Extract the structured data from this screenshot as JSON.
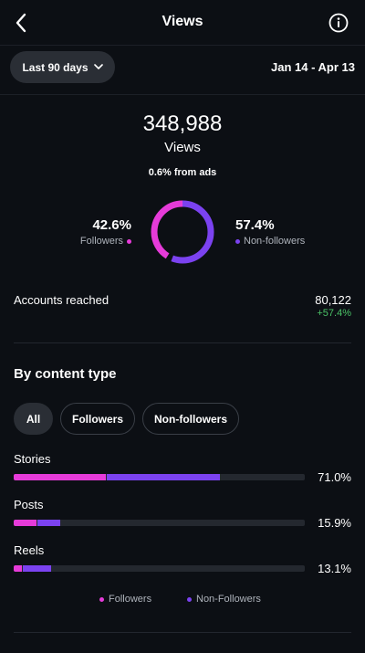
{
  "header": {
    "title": "Views",
    "back_icon": "chevron-left-icon",
    "info_icon": "info-icon"
  },
  "filter": {
    "range_label": "Last 90 days",
    "date_range": "Jan 14 - Apr 13"
  },
  "summary": {
    "total": "348,988",
    "label": "Views",
    "ads_note": "0.6% from ads",
    "followers_pct": "42.6%",
    "followers_label": "Followers",
    "nonfollowers_pct": "57.4%",
    "nonfollowers_label": "Non-followers",
    "followers_fraction": 0.426
  },
  "accounts": {
    "label": "Accounts reached",
    "value": "80,122",
    "change": "+57.4%"
  },
  "content_type": {
    "title": "By content type",
    "tabs": [
      "All",
      "Followers",
      "Non-followers"
    ],
    "rows": [
      {
        "label": "Stories",
        "pct": "71.0%",
        "followers": 0.32,
        "nonfollowers": 0.39
      },
      {
        "label": "Posts",
        "pct": "15.9%",
        "followers": 0.08,
        "nonfollowers": 0.08
      },
      {
        "label": "Reels",
        "pct": "13.1%",
        "followers": 0.03,
        "nonfollowers": 0.1
      }
    ],
    "legend": {
      "followers": "Followers",
      "nonfollowers": "Non-Followers"
    }
  },
  "colors": {
    "followers": "#e63bd9",
    "nonfollowers": "#7b42f0",
    "positive": "#4ac266",
    "background": "#0c0f14"
  }
}
